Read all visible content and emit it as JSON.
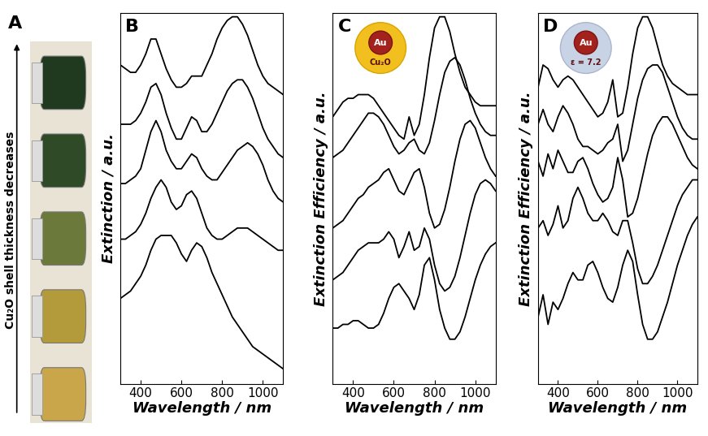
{
  "photo": {
    "label": "A",
    "text": "Cu₂O shell thickness decreases"
  },
  "chart_data": [
    {
      "type": "line",
      "title": "B",
      "x_label": "Wavelength / nm",
      "y_label": "Extinction / a.u.",
      "x": [
        300,
        325,
        350,
        375,
        400,
        425,
        450,
        475,
        500,
        525,
        550,
        575,
        600,
        625,
        650,
        675,
        700,
        725,
        750,
        775,
        800,
        825,
        850,
        875,
        900,
        925,
        950,
        975,
        1000,
        1025,
        1050,
        1075,
        1100
      ],
      "xlim": [
        300,
        1100
      ],
      "xticks": [
        400,
        600,
        800,
        1000
      ],
      "ylim": [
        0,
        1
      ],
      "tick_labels": "x",
      "series": [
        {
          "color": "#000000",
          "values": [
            0.86,
            0.85,
            0.84,
            0.84,
            0.86,
            0.89,
            0.93,
            0.93,
            0.89,
            0.85,
            0.82,
            0.8,
            0.8,
            0.81,
            0.83,
            0.83,
            0.83,
            0.86,
            0.89,
            0.93,
            0.96,
            0.98,
            0.99,
            0.99,
            0.97,
            0.94,
            0.9,
            0.86,
            0.83,
            0.81,
            0.8,
            0.79,
            0.78
          ]
        },
        {
          "color": "#000000",
          "values": [
            0.7,
            0.7,
            0.7,
            0.71,
            0.73,
            0.76,
            0.8,
            0.81,
            0.78,
            0.73,
            0.69,
            0.66,
            0.66,
            0.69,
            0.72,
            0.71,
            0.68,
            0.68,
            0.7,
            0.73,
            0.76,
            0.79,
            0.81,
            0.82,
            0.82,
            0.8,
            0.77,
            0.73,
            0.69,
            0.66,
            0.64,
            0.62,
            0.61
          ]
        },
        {
          "color": "#000000",
          "values": [
            0.54,
            0.54,
            0.55,
            0.56,
            0.58,
            0.63,
            0.68,
            0.71,
            0.68,
            0.63,
            0.6,
            0.58,
            0.58,
            0.6,
            0.62,
            0.61,
            0.58,
            0.56,
            0.55,
            0.55,
            0.57,
            0.59,
            0.61,
            0.63,
            0.64,
            0.65,
            0.64,
            0.62,
            0.59,
            0.55,
            0.52,
            0.5,
            0.49
          ]
        },
        {
          "color": "#000000",
          "values": [
            0.39,
            0.39,
            0.4,
            0.41,
            0.43,
            0.46,
            0.5,
            0.53,
            0.55,
            0.53,
            0.49,
            0.47,
            0.48,
            0.51,
            0.52,
            0.5,
            0.46,
            0.42,
            0.4,
            0.39,
            0.39,
            0.4,
            0.41,
            0.42,
            0.42,
            0.42,
            0.41,
            0.4,
            0.39,
            0.38,
            0.37,
            0.36,
            0.36
          ]
        },
        {
          "color": "#000000",
          "values": [
            0.23,
            0.24,
            0.25,
            0.27,
            0.29,
            0.32,
            0.36,
            0.39,
            0.4,
            0.4,
            0.4,
            0.38,
            0.35,
            0.33,
            0.36,
            0.38,
            0.37,
            0.34,
            0.3,
            0.27,
            0.24,
            0.21,
            0.18,
            0.16,
            0.14,
            0.12,
            0.1,
            0.09,
            0.08,
            0.07,
            0.06,
            0.05,
            0.04
          ]
        }
      ]
    },
    {
      "type": "line",
      "title": "C",
      "x_label": "Wavelength / nm",
      "y_label": "Extinction Efficiency / a.u.",
      "annotations": [
        "Au",
        "Cu₂O"
      ],
      "x": [
        300,
        325,
        350,
        375,
        400,
        425,
        450,
        475,
        500,
        525,
        550,
        575,
        600,
        625,
        650,
        675,
        700,
        725,
        750,
        775,
        800,
        825,
        850,
        875,
        900,
        925,
        950,
        975,
        1000,
        1025,
        1050,
        1075,
        1100
      ],
      "xlim": [
        300,
        1100
      ],
      "xticks": [
        400,
        600,
        800,
        1000
      ],
      "ylim": [
        0,
        1
      ],
      "tick_labels": "x",
      "series": [
        {
          "color": "#000000",
          "values": [
            0.72,
            0.74,
            0.76,
            0.77,
            0.77,
            0.78,
            0.78,
            0.78,
            0.77,
            0.75,
            0.73,
            0.71,
            0.69,
            0.67,
            0.66,
            0.72,
            0.67,
            0.7,
            0.78,
            0.88,
            0.96,
            0.99,
            0.99,
            0.95,
            0.89,
            0.84,
            0.8,
            0.78,
            0.76,
            0.75,
            0.75,
            0.75,
            0.75
          ]
        },
        {
          "color": "#000000",
          "values": [
            0.61,
            0.62,
            0.63,
            0.65,
            0.67,
            0.69,
            0.71,
            0.73,
            0.73,
            0.72,
            0.7,
            0.67,
            0.64,
            0.62,
            0.63,
            0.65,
            0.66,
            0.63,
            0.62,
            0.65,
            0.71,
            0.78,
            0.84,
            0.87,
            0.88,
            0.86,
            0.82,
            0.77,
            0.73,
            0.7,
            0.68,
            0.67,
            0.67
          ]
        },
        {
          "color": "#000000",
          "values": [
            0.42,
            0.43,
            0.44,
            0.46,
            0.48,
            0.5,
            0.51,
            0.53,
            0.54,
            0.55,
            0.57,
            0.58,
            0.55,
            0.52,
            0.51,
            0.54,
            0.57,
            0.58,
            0.53,
            0.46,
            0.42,
            0.43,
            0.47,
            0.53,
            0.6,
            0.66,
            0.7,
            0.71,
            0.69,
            0.65,
            0.61,
            0.58,
            0.56
          ]
        },
        {
          "color": "#000000",
          "values": [
            0.28,
            0.29,
            0.3,
            0.32,
            0.34,
            0.36,
            0.37,
            0.38,
            0.38,
            0.38,
            0.39,
            0.41,
            0.39,
            0.34,
            0.37,
            0.41,
            0.36,
            0.37,
            0.42,
            0.39,
            0.32,
            0.27,
            0.25,
            0.26,
            0.29,
            0.34,
            0.4,
            0.46,
            0.51,
            0.54,
            0.55,
            0.54,
            0.52
          ]
        },
        {
          "color": "#000000",
          "values": [
            0.15,
            0.15,
            0.16,
            0.16,
            0.17,
            0.17,
            0.16,
            0.15,
            0.15,
            0.16,
            0.19,
            0.23,
            0.26,
            0.27,
            0.25,
            0.23,
            0.2,
            0.24,
            0.32,
            0.34,
            0.28,
            0.2,
            0.15,
            0.12,
            0.12,
            0.14,
            0.18,
            0.23,
            0.28,
            0.32,
            0.35,
            0.37,
            0.38
          ]
        }
      ]
    },
    {
      "type": "line",
      "title": "D",
      "x_label": "Wavelength / nm",
      "y_label": "Extinction Efficiency / a.u.",
      "annotations": [
        "Au",
        "ε = 7.2"
      ],
      "x": [
        300,
        325,
        350,
        375,
        400,
        425,
        450,
        475,
        500,
        525,
        550,
        575,
        600,
        625,
        650,
        675,
        700,
        725,
        750,
        775,
        800,
        825,
        850,
        875,
        900,
        925,
        950,
        975,
        1000,
        1025,
        1050,
        1075,
        1100
      ],
      "xlim": [
        300,
        1100
      ],
      "xticks": [
        400,
        600,
        800,
        1000
      ],
      "ylim": [
        0,
        1
      ],
      "tick_labels": "x",
      "series": [
        {
          "color": "#000000",
          "values": [
            0.8,
            0.86,
            0.85,
            0.82,
            0.8,
            0.82,
            0.83,
            0.82,
            0.8,
            0.78,
            0.76,
            0.74,
            0.72,
            0.73,
            0.76,
            0.82,
            0.72,
            0.73,
            0.8,
            0.89,
            0.96,
            0.99,
            0.99,
            0.96,
            0.91,
            0.86,
            0.83,
            0.81,
            0.8,
            0.79,
            0.78,
            0.78,
            0.78
          ]
        },
        {
          "color": "#000000",
          "values": [
            0.7,
            0.74,
            0.7,
            0.68,
            0.72,
            0.75,
            0.73,
            0.7,
            0.66,
            0.64,
            0.64,
            0.63,
            0.62,
            0.63,
            0.65,
            0.66,
            0.7,
            0.6,
            0.63,
            0.7,
            0.77,
            0.82,
            0.85,
            0.86,
            0.86,
            0.84,
            0.8,
            0.76,
            0.72,
            0.69,
            0.67,
            0.66,
            0.66
          ]
        },
        {
          "color": "#000000",
          "values": [
            0.6,
            0.56,
            0.62,
            0.58,
            0.63,
            0.6,
            0.57,
            0.57,
            0.6,
            0.61,
            0.58,
            0.54,
            0.51,
            0.49,
            0.5,
            0.53,
            0.61,
            0.55,
            0.45,
            0.46,
            0.5,
            0.56,
            0.62,
            0.67,
            0.7,
            0.72,
            0.72,
            0.7,
            0.67,
            0.64,
            0.61,
            0.59,
            0.58
          ]
        },
        {
          "color": "#000000",
          "values": [
            0.42,
            0.44,
            0.4,
            0.43,
            0.48,
            0.42,
            0.44,
            0.5,
            0.53,
            0.5,
            0.46,
            0.44,
            0.44,
            0.46,
            0.44,
            0.41,
            0.4,
            0.44,
            0.44,
            0.38,
            0.31,
            0.27,
            0.27,
            0.29,
            0.32,
            0.36,
            0.4,
            0.44,
            0.48,
            0.51,
            0.53,
            0.55,
            0.55
          ]
        },
        {
          "color": "#000000",
          "values": [
            0.18,
            0.24,
            0.16,
            0.22,
            0.2,
            0.23,
            0.27,
            0.3,
            0.28,
            0.28,
            0.32,
            0.33,
            0.3,
            0.26,
            0.23,
            0.22,
            0.26,
            0.32,
            0.36,
            0.33,
            0.24,
            0.16,
            0.12,
            0.12,
            0.14,
            0.18,
            0.22,
            0.27,
            0.32,
            0.36,
            0.4,
            0.43,
            0.45
          ]
        }
      ]
    }
  ]
}
